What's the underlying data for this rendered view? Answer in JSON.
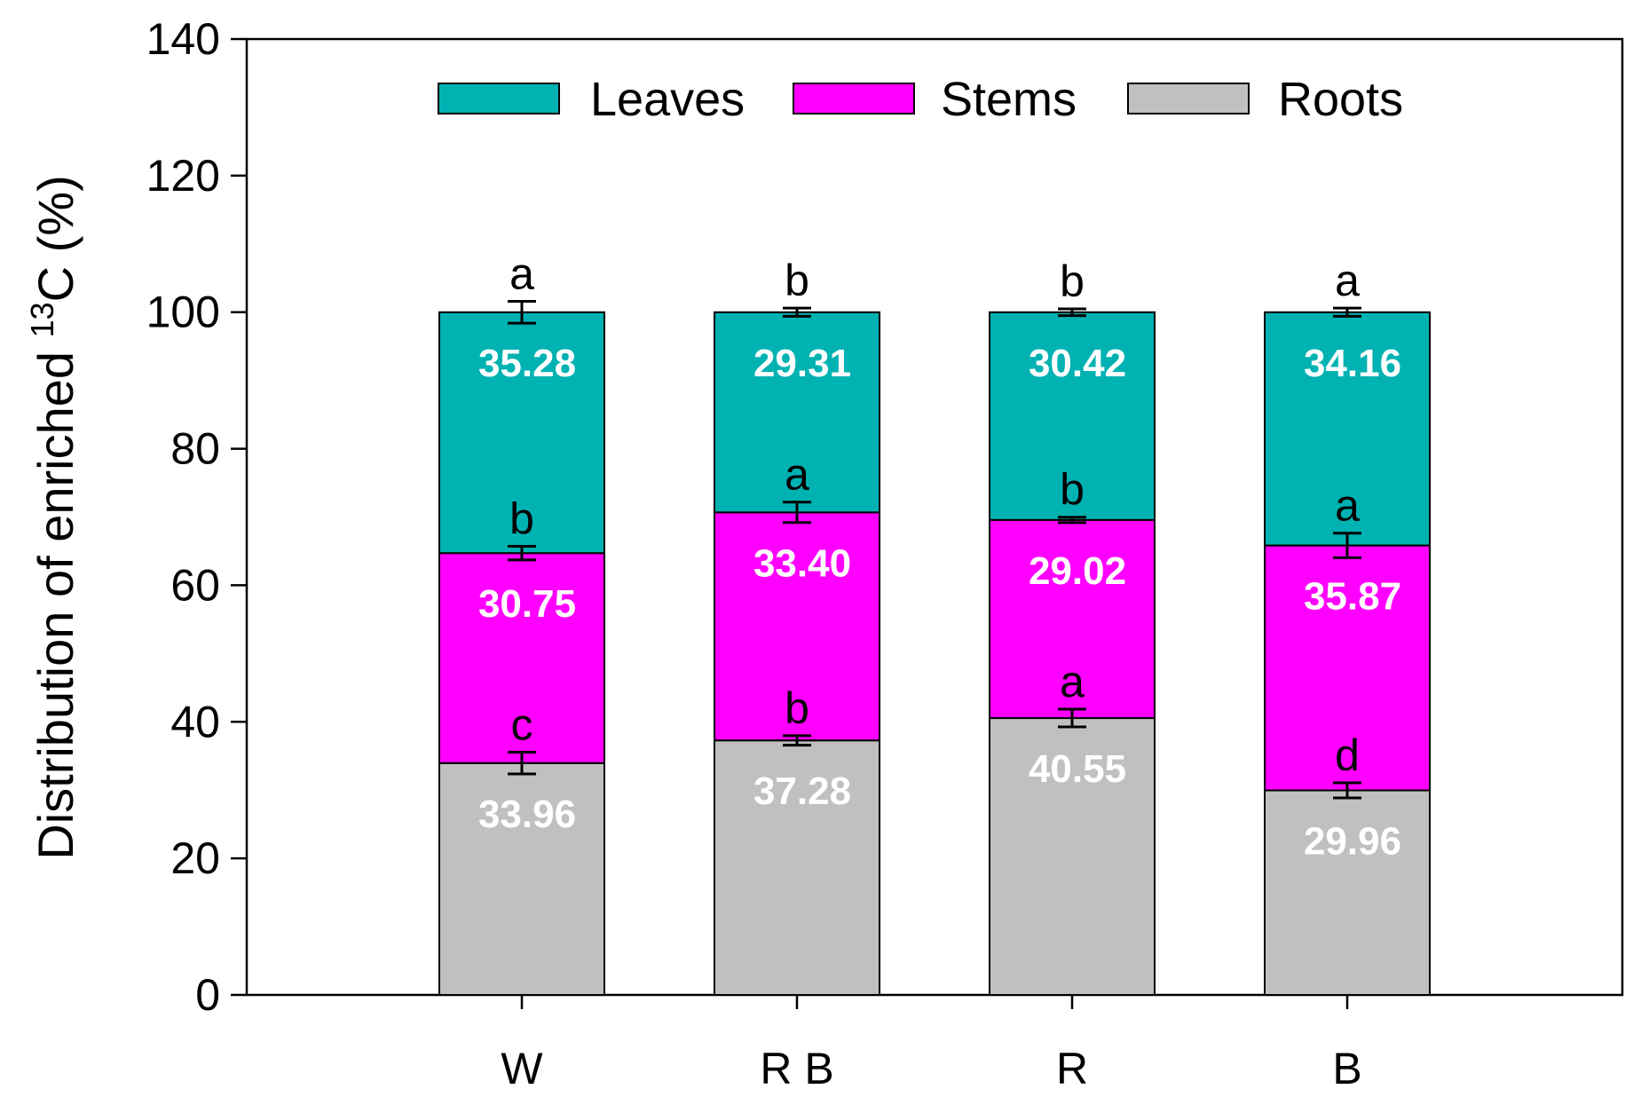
{
  "chart_data": {
    "type": "bar",
    "stacked": true,
    "categories": [
      "W",
      "R B",
      "R",
      "B"
    ],
    "series": [
      {
        "name": "Roots",
        "color": "#c0c0c0",
        "values": [
          33.96,
          37.28,
          40.55,
          29.96
        ],
        "value_labels": [
          "33.96",
          "37.28",
          "40.55",
          "29.96"
        ],
        "errors": [
          1.6,
          0.7,
          1.3,
          1.1
        ],
        "letters": [
          "c",
          "b",
          "a",
          "d"
        ]
      },
      {
        "name": "Stems",
        "color": "#ff00ff",
        "values": [
          30.75,
          33.4,
          29.02,
          35.87
        ],
        "value_labels": [
          "30.75",
          "33.40",
          "29.02",
          "35.87"
        ],
        "errors": [
          1.0,
          1.5,
          0.4,
          1.8
        ],
        "letters": [
          "b",
          "a",
          "b",
          "a"
        ]
      },
      {
        "name": "Leaves",
        "color": "#00b2b2",
        "values": [
          35.28,
          29.31,
          30.42,
          34.16
        ],
        "value_labels": [
          "35.28",
          "29.31",
          "30.42",
          "34.16"
        ],
        "errors": [
          1.6,
          0.6,
          0.5,
          0.6
        ],
        "letters": [
          "a",
          "b",
          "b",
          "a"
        ]
      }
    ],
    "legend_order": [
      "Leaves",
      "Stems",
      "Roots"
    ],
    "legend_position": "top-center",
    "title": "",
    "xlabel": "",
    "ylabel": "Distribution of enriched ",
    "ylabel_superscript": "13",
    "ylabel_suffix": "C (%)",
    "ylim": [
      0,
      140
    ],
    "yticks": [
      0,
      20,
      40,
      60,
      80,
      100,
      120,
      140
    ],
    "grid": false
  }
}
